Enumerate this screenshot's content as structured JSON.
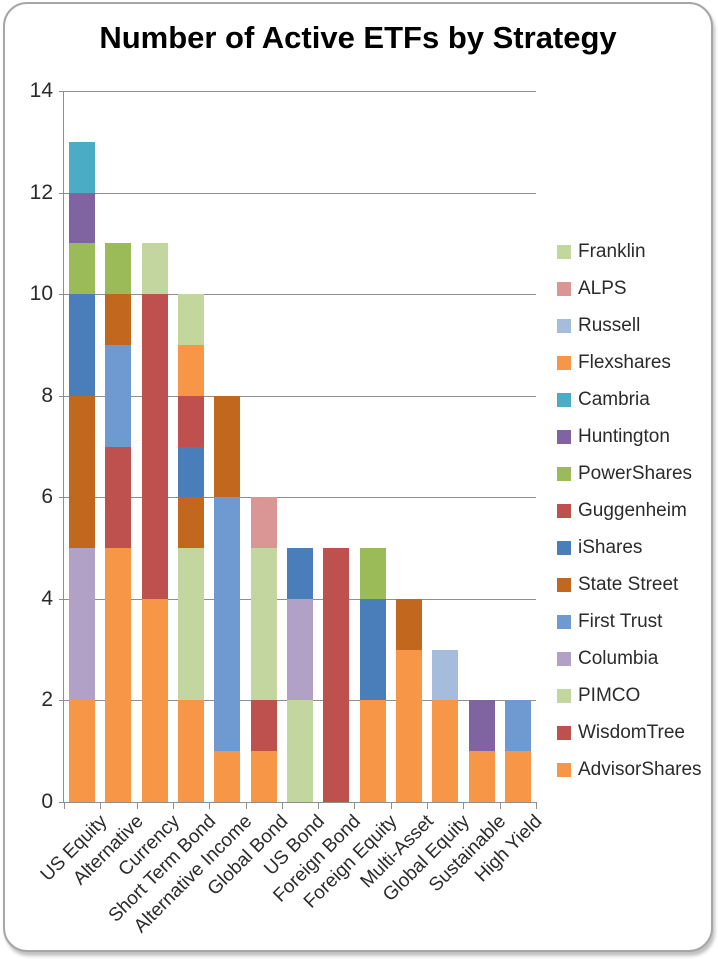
{
  "chart_data": {
    "type": "bar",
    "stacked": true,
    "title": "Number of Active ETFs by Strategy",
    "xlabel": "",
    "ylabel": "",
    "ylim": [
      0,
      14
    ],
    "yticks": [
      0,
      2,
      4,
      6,
      8,
      10,
      12,
      14
    ],
    "grid": true,
    "legend_position": "right",
    "categories": [
      "US Equity",
      "Alternative",
      "Currency",
      "Short Term Bond",
      "Alternative Income",
      "Global Bond",
      "US Bond",
      "Foreign Bond",
      "Foreign Equity",
      "Multi-Asset",
      "Global Equity",
      "Sustainable",
      "High Yield"
    ],
    "series": [
      {
        "name": "AdvisorShares",
        "color": "#F79646",
        "values": [
          2,
          5,
          4,
          2,
          1,
          1,
          0,
          0,
          2,
          3,
          2,
          1,
          1
        ]
      },
      {
        "name": "WisdomTree",
        "color": "#BE504E",
        "values": [
          0,
          2,
          6,
          0,
          0,
          1,
          0,
          5,
          0,
          0,
          0,
          0,
          0
        ]
      },
      {
        "name": "PIMCO",
        "color": "#C4D6A0",
        "values": [
          0,
          0,
          1,
          3,
          0,
          3,
          2,
          0,
          0,
          0,
          0,
          0,
          0
        ]
      },
      {
        "name": "Columbia",
        "color": "#B2A1C7",
        "values": [
          3,
          0,
          0,
          0,
          0,
          0,
          2,
          0,
          0,
          0,
          0,
          0,
          0
        ]
      },
      {
        "name": "First Trust",
        "color": "#6F9AD1",
        "values": [
          0,
          2,
          0,
          0,
          5,
          0,
          0,
          0,
          0,
          0,
          0,
          0,
          1
        ]
      },
      {
        "name": "State Street",
        "color": "#C1671E",
        "values": [
          3,
          1,
          0,
          1,
          2,
          0,
          0,
          0,
          0,
          1,
          0,
          0,
          0
        ]
      },
      {
        "name": "iShares",
        "color": "#4A7EBB",
        "values": [
          2,
          0,
          0,
          1,
          0,
          0,
          1,
          0,
          2,
          0,
          0,
          0,
          0
        ]
      },
      {
        "name": "Guggenheim",
        "color": "#C0504D",
        "values": [
          0,
          0,
          0,
          1,
          0,
          0,
          0,
          0,
          0,
          0,
          0,
          0,
          0
        ]
      },
      {
        "name": "PowerShares",
        "color": "#9BBB59",
        "values": [
          1,
          1,
          0,
          0,
          0,
          0,
          0,
          0,
          1,
          0,
          0,
          0,
          0
        ]
      },
      {
        "name": "Huntington",
        "color": "#8064A2",
        "values": [
          1,
          0,
          0,
          0,
          0,
          0,
          0,
          0,
          0,
          0,
          0,
          1,
          0
        ]
      },
      {
        "name": "Cambria",
        "color": "#4BACC6",
        "values": [
          1,
          0,
          0,
          0,
          0,
          0,
          0,
          0,
          0,
          0,
          0,
          0,
          0
        ]
      },
      {
        "name": "Flexshares",
        "color": "#F79646",
        "values": [
          0,
          0,
          0,
          1,
          0,
          0,
          0,
          0,
          0,
          0,
          0,
          0,
          0
        ]
      },
      {
        "name": "Russell",
        "color": "#A5BCDC",
        "values": [
          0,
          0,
          0,
          0,
          0,
          0,
          0,
          0,
          0,
          0,
          1,
          0,
          0
        ]
      },
      {
        "name": "ALPS",
        "color": "#D99694",
        "values": [
          0,
          0,
          0,
          0,
          0,
          1,
          0,
          0,
          0,
          0,
          0,
          0,
          0
        ]
      },
      {
        "name": "Franklin",
        "color": "#C3D69B",
        "values": [
          0,
          0,
          0,
          1,
          0,
          0,
          0,
          0,
          0,
          0,
          0,
          0,
          0
        ]
      }
    ],
    "legend_order_top_to_bottom": [
      "Franklin",
      "ALPS",
      "Russell",
      "Flexshares",
      "Cambria",
      "Huntington",
      "PowerShares",
      "Guggenheim",
      "iShares",
      "State Street",
      "First Trust",
      "Columbia",
      "PIMCO",
      "WisdomTree",
      "AdvisorShares"
    ],
    "colors": {
      "gridline": "#8E8E8E",
      "axis": "#8E8E8E",
      "tick_label_text": "#2B2B2B",
      "title_text": "#000000",
      "frame_border": "#A6A6A6"
    }
  }
}
